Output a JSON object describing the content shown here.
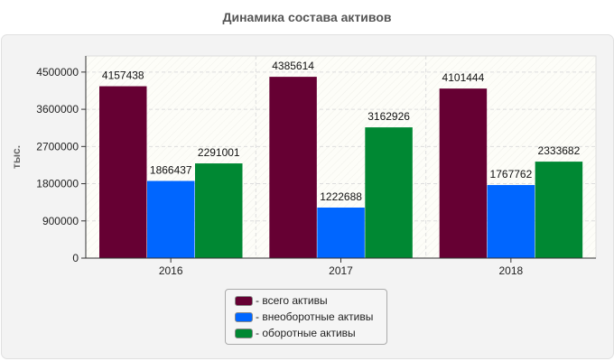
{
  "chart_data": {
    "type": "bar",
    "title": "Динамика состава активов",
    "xlabel": "",
    "ylabel": "тыс.",
    "categories": [
      "2016",
      "2017",
      "2018"
    ],
    "ylim": [
      0,
      4890000
    ],
    "yticks": [
      0,
      900000,
      1800000,
      2700000,
      3600000,
      4500000
    ],
    "legend_position": "bottom",
    "series": [
      {
        "name": "- всего активы",
        "color": "#660033",
        "values": [
          4157438,
          4385614,
          4101444
        ]
      },
      {
        "name": "- внеоборотные активы",
        "color": "#0066ff",
        "values": [
          1866437,
          1222688,
          1767762
        ]
      },
      {
        "name": "- оборотные активы",
        "color": "#008833",
        "values": [
          2291001,
          3162926,
          2333682
        ]
      }
    ]
  }
}
